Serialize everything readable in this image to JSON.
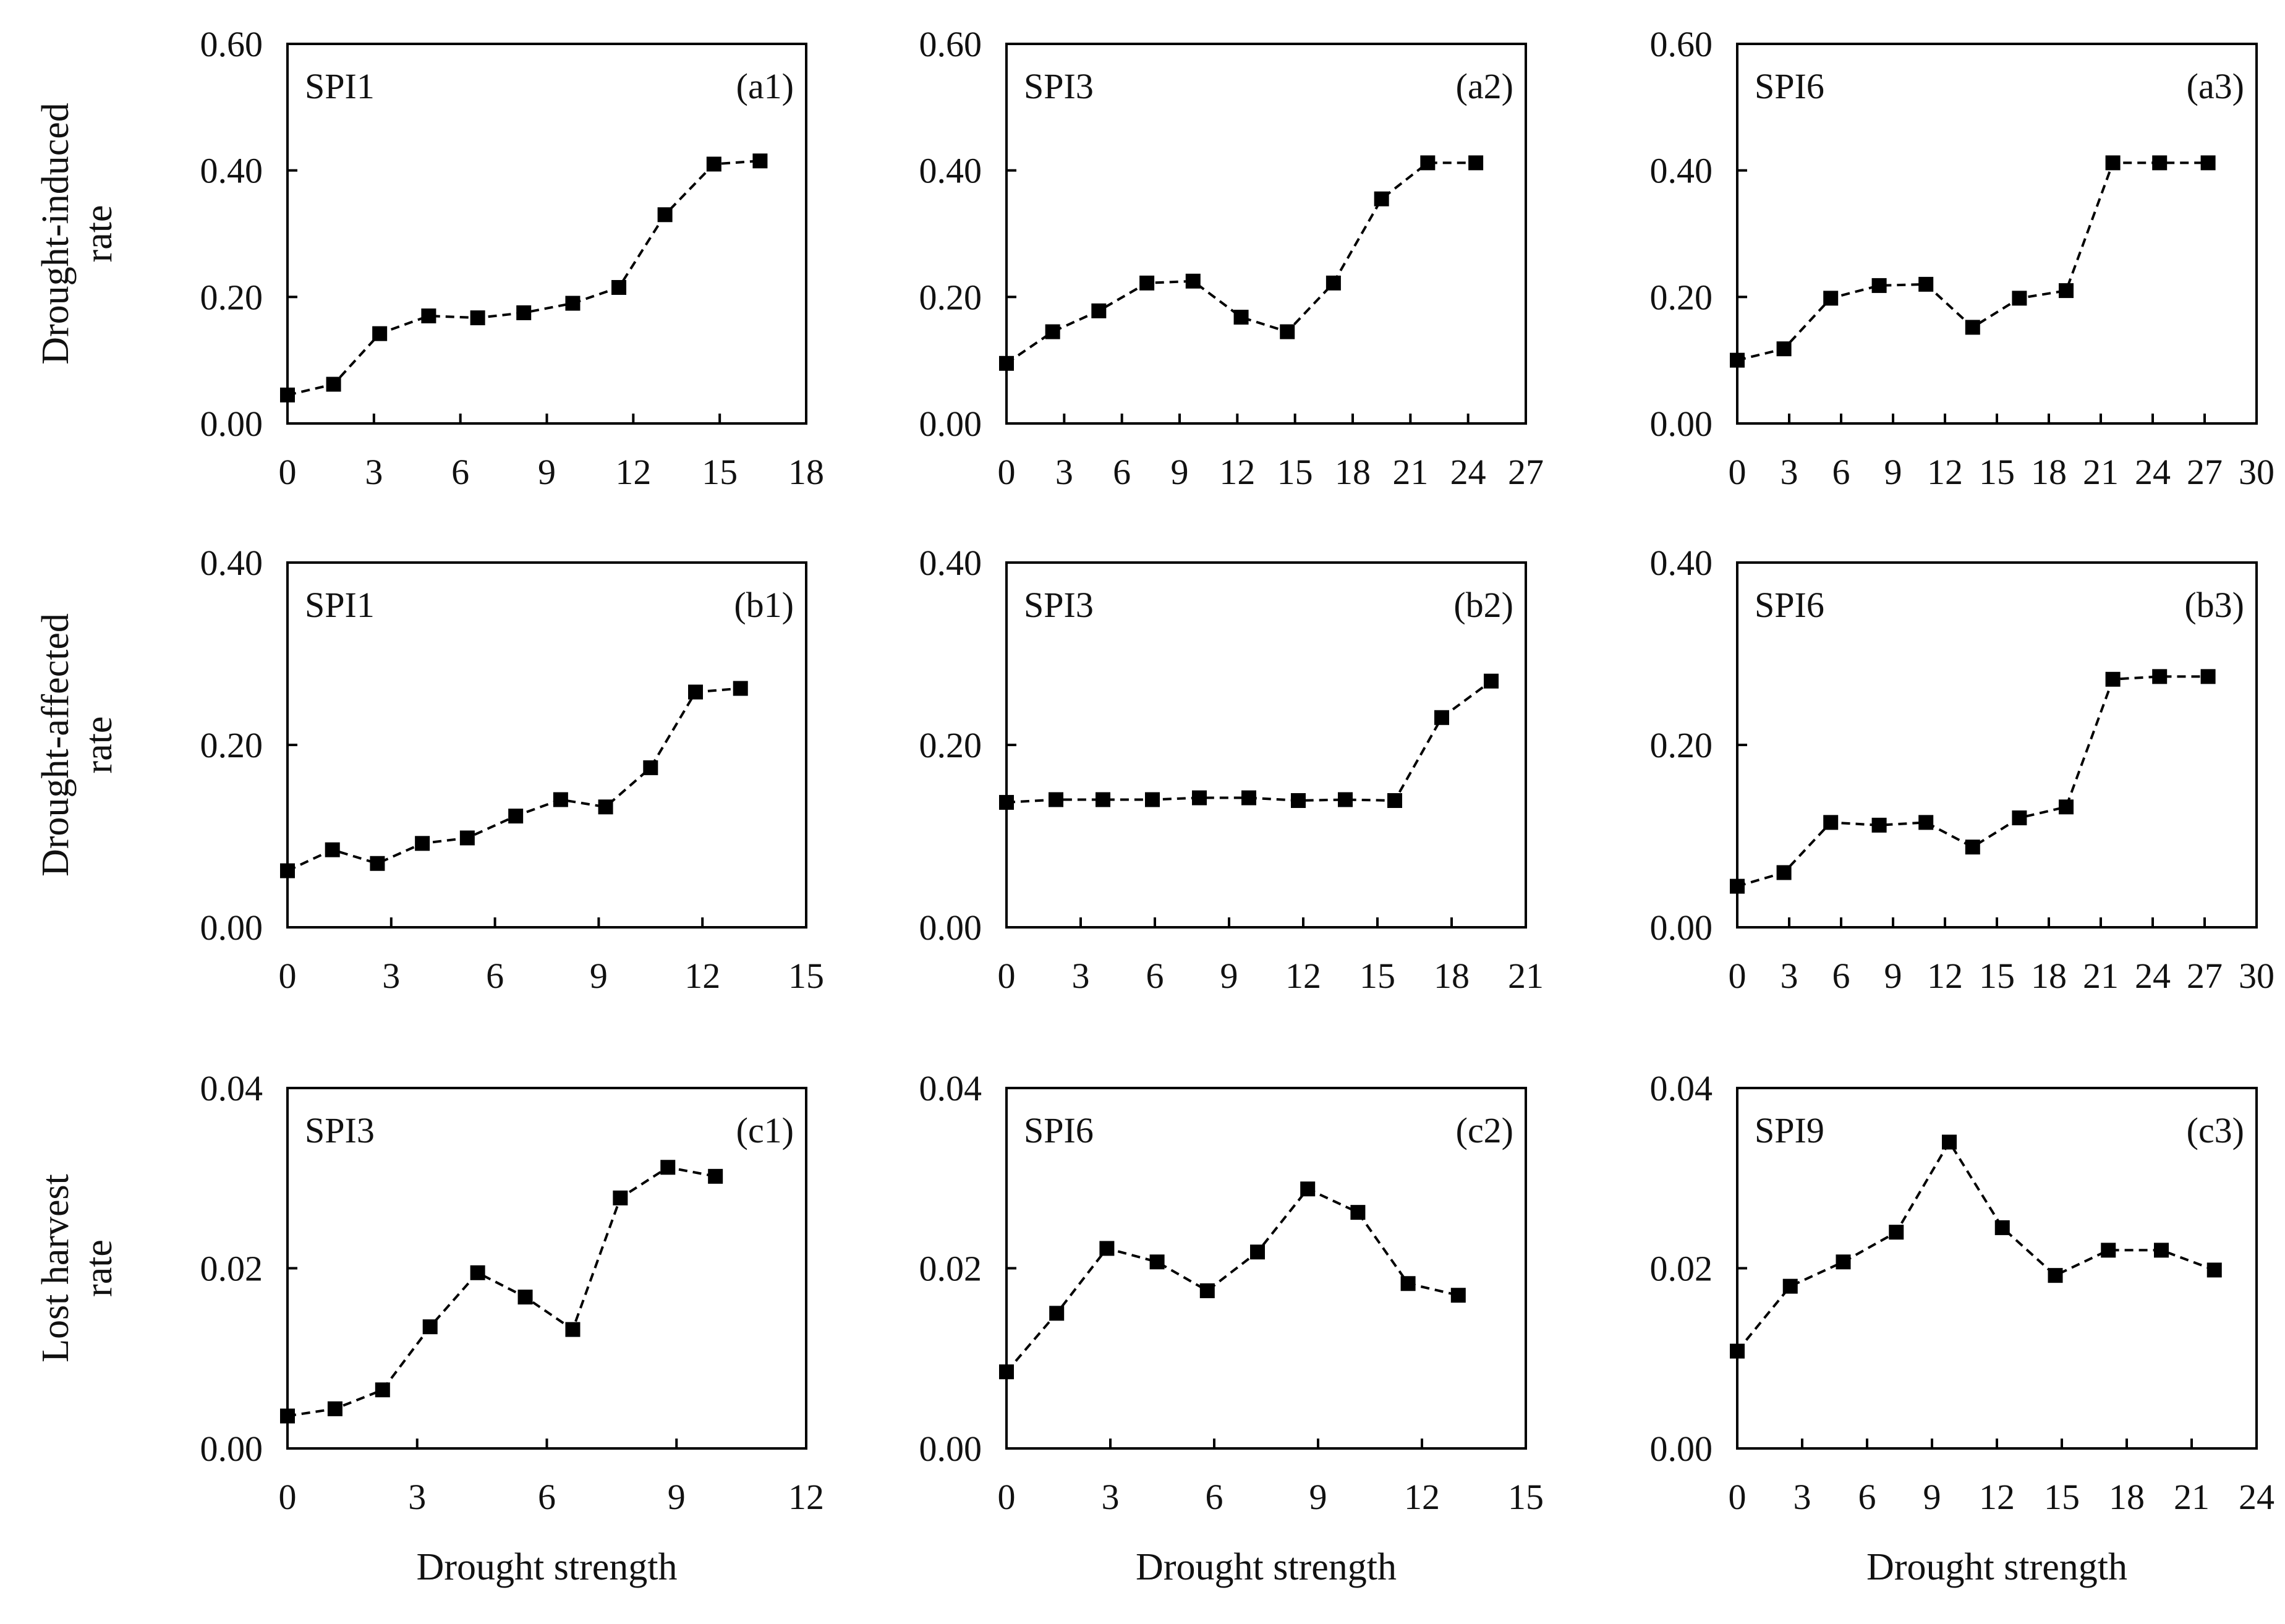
{
  "figure": {
    "row_ylabels": [
      [
        "Drought-induced",
        "rate"
      ],
      [
        "Drought-affected",
        "rate"
      ],
      [
        "Lost harvest",
        "rate"
      ]
    ],
    "col_xlabels": [
      "Drought strength",
      "Drought strength",
      "Drought strength"
    ]
  },
  "chart_data": [
    {
      "type": "line",
      "panel_id": "(a1)",
      "index_name": "SPI1",
      "x": [
        0,
        1.6,
        3.2,
        4.9,
        6.6,
        8.2,
        9.9,
        11.5,
        13.1,
        14.8,
        16.4
      ],
      "y": [
        0.045,
        0.062,
        0.142,
        0.17,
        0.167,
        0.175,
        0.19,
        0.215,
        0.33,
        0.41,
        0.415
      ],
      "xlim": [
        0,
        18
      ],
      "ylim": [
        0,
        0.6
      ],
      "xticks": [
        "0",
        "3",
        "6",
        "9",
        "12",
        "15",
        "18"
      ],
      "yticks": [
        "0.00",
        "0.20",
        "0.40",
        "0.60"
      ]
    },
    {
      "type": "line",
      "panel_id": "(a2)",
      "index_name": "SPI3",
      "x": [
        0,
        2.4,
        4.8,
        7.3,
        9.7,
        12.2,
        14.6,
        17.0,
        19.5,
        21.9,
        24.4
      ],
      "y": [
        0.095,
        0.145,
        0.178,
        0.222,
        0.225,
        0.168,
        0.145,
        0.222,
        0.355,
        0.412,
        0.412
      ],
      "xlim": [
        0,
        27
      ],
      "ylim": [
        0,
        0.6
      ],
      "xticks": [
        "0",
        "3",
        "6",
        "9",
        "12",
        "15",
        "18",
        "21",
        "24",
        "27"
      ],
      "yticks": [
        "0.00",
        "0.20",
        "0.40",
        "0.60"
      ]
    },
    {
      "type": "line",
      "panel_id": "(a3)",
      "index_name": "SPI6",
      "x": [
        0,
        2.7,
        5.4,
        8.2,
        10.9,
        13.6,
        16.3,
        19.0,
        21.7,
        24.4,
        27.2
      ],
      "y": [
        0.1,
        0.118,
        0.198,
        0.218,
        0.22,
        0.152,
        0.198,
        0.21,
        0.412,
        0.412,
        0.412
      ],
      "xlim": [
        0,
        30
      ],
      "ylim": [
        0,
        0.6
      ],
      "xticks": [
        "0",
        "3",
        "6",
        "9",
        "12",
        "15",
        "18",
        "21",
        "24",
        "27",
        "30"
      ],
      "yticks": [
        "0.00",
        "0.20",
        "0.40",
        "0.60"
      ]
    },
    {
      "type": "line",
      "panel_id": "(b1)",
      "index_name": "SPI1",
      "x": [
        0,
        1.3,
        2.6,
        3.9,
        5.2,
        6.6,
        7.9,
        9.2,
        10.5,
        11.8,
        13.1
      ],
      "y": [
        0.062,
        0.085,
        0.07,
        0.092,
        0.098,
        0.122,
        0.14,
        0.132,
        0.175,
        0.258,
        0.262
      ],
      "xlim": [
        0,
        15
      ],
      "ylim": [
        0,
        0.4
      ],
      "xticks": [
        "0",
        "3",
        "6",
        "9",
        "12",
        "15"
      ],
      "yticks": [
        "0.00",
        "0.20",
        "0.40"
      ]
    },
    {
      "type": "line",
      "panel_id": "(b2)",
      "index_name": "SPI3",
      "x": [
        0,
        2.0,
        3.9,
        5.9,
        7.8,
        9.8,
        11.8,
        13.7,
        15.7,
        17.6,
        19.6
      ],
      "y": [
        0.137,
        0.14,
        0.14,
        0.14,
        0.142,
        0.142,
        0.139,
        0.14,
        0.139,
        0.23,
        0.27
      ],
      "xlim": [
        0,
        21
      ],
      "ylim": [
        0,
        0.4
      ],
      "xticks": [
        "0",
        "3",
        "6",
        "9",
        "12",
        "15",
        "18",
        "21"
      ],
      "yticks": [
        "0.00",
        "0.20",
        "0.40"
      ]
    },
    {
      "type": "line",
      "panel_id": "(b3)",
      "index_name": "SPI6",
      "x": [
        0,
        2.7,
        5.4,
        8.2,
        10.9,
        13.6,
        16.3,
        19.0,
        21.7,
        24.4,
        27.2
      ],
      "y": [
        0.045,
        0.06,
        0.115,
        0.112,
        0.115,
        0.088,
        0.12,
        0.132,
        0.272,
        0.275,
        0.275
      ],
      "xlim": [
        0,
        30
      ],
      "ylim": [
        0,
        0.4
      ],
      "xticks": [
        "0",
        "3",
        "6",
        "9",
        "12",
        "15",
        "18",
        "21",
        "24",
        "27",
        "30"
      ],
      "yticks": [
        "0.00",
        "0.20",
        "0.40"
      ]
    },
    {
      "type": "line",
      "panel_id": "(c1)",
      "index_name": "SPI3",
      "x": [
        0,
        1.1,
        2.2,
        3.3,
        4.4,
        5.5,
        6.6,
        7.7,
        8.8,
        9.9
      ],
      "y": [
        0.0036,
        0.0044,
        0.0065,
        0.0135,
        0.0195,
        0.0168,
        0.0132,
        0.0278,
        0.0312,
        0.0302
      ],
      "xlim": [
        0,
        12
      ],
      "ylim": [
        0,
        0.04
      ],
      "xticks": [
        "0",
        "3",
        "6",
        "9",
        "12"
      ],
      "yticks": [
        "0.00",
        "0.02",
        "0.04"
      ]
    },
    {
      "type": "line",
      "panel_id": "(c2)",
      "index_name": "SPI6",
      "x": [
        0,
        1.45,
        2.9,
        4.35,
        5.8,
        7.25,
        8.7,
        10.15,
        11.6,
        13.05
      ],
      "y": [
        0.0085,
        0.015,
        0.0222,
        0.0207,
        0.0175,
        0.0218,
        0.0288,
        0.0262,
        0.0183,
        0.017
      ],
      "xlim": [
        0,
        15
      ],
      "ylim": [
        0,
        0.04
      ],
      "xticks": [
        "0",
        "3",
        "6",
        "9",
        "12",
        "15"
      ],
      "yticks": [
        "0.00",
        "0.02",
        "0.04"
      ]
    },
    {
      "type": "line",
      "panel_id": "(c3)",
      "index_name": "SPI9",
      "x": [
        0,
        2.45,
        4.9,
        7.35,
        9.8,
        12.25,
        14.7,
        17.15,
        19.6,
        22.05
      ],
      "y": [
        0.0108,
        0.018,
        0.0207,
        0.024,
        0.034,
        0.0245,
        0.0192,
        0.022,
        0.022,
        0.0198
      ],
      "xlim": [
        0,
        24
      ],
      "ylim": [
        0,
        0.04
      ],
      "xticks": [
        "0",
        "3",
        "6",
        "9",
        "12",
        "15",
        "18",
        "21",
        "24"
      ],
      "yticks": [
        "0.00",
        "0.02",
        "0.04"
      ]
    }
  ]
}
